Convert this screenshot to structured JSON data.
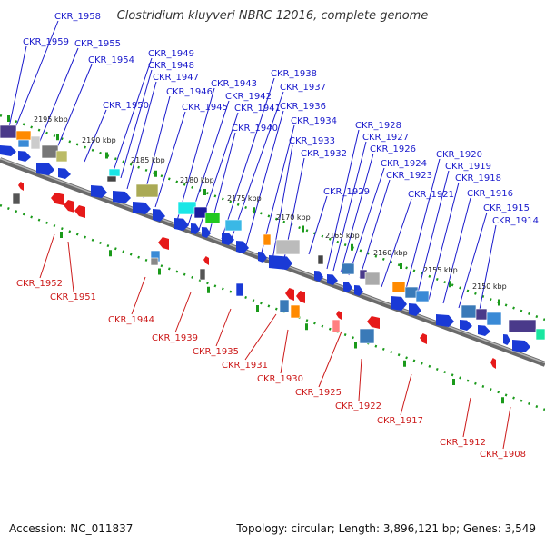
{
  "title": "Clostridium kluyveri NBRC 12016, complete genome",
  "footer": {
    "accession": "Accession: NC_011837",
    "topology": "Topology: circular; Length: 3,896,121 bp; Genes: 3,549"
  },
  "colors": {
    "forward_label": "#1a1acc",
    "reverse_label": "#cc1a1a",
    "backbone": "#7a7a7a",
    "tick_green": "#1a9a1a",
    "gene_forward": "#1a3ad6",
    "gene_reverse": "#e61a1a"
  },
  "scale_labels": [
    "2195 kbp",
    "2190 kbp",
    "2185 kbp",
    "2180 kbp",
    "2175 kbp",
    "2170 kbp",
    "2165 kbp",
    "2160 kbp",
    "2155 kbp",
    "2150 kbp"
  ],
  "forward_genes": [
    "CKR_1958",
    "CKR_1959",
    "CKR_1955",
    "CKR_1954",
    "CKR_1949",
    "CKR_1948",
    "CKR_1947",
    "CKR_1950",
    "CKR_1946",
    "CKR_1945",
    "CKR_1943",
    "CKR_1942",
    "CKR_1941",
    "CKR_1940",
    "CKR_1938",
    "CKR_1937",
    "CKR_1936",
    "CKR_1934",
    "CKR_1933",
    "CKR_1932",
    "CKR_1929",
    "CKR_1928",
    "CKR_1927",
    "CKR_1926",
    "CKR_1924",
    "CKR_1923",
    "CKR_1921",
    "CKR_1920",
    "CKR_1919",
    "CKR_1918",
    "CKR_1916",
    "CKR_1915",
    "CKR_1914"
  ],
  "reverse_genes": [
    "CKR_1952",
    "CKR_1951",
    "CKR_1944",
    "CKR_1939",
    "CKR_1935",
    "CKR_1931",
    "CKR_1930",
    "CKR_1925",
    "CKR_1922",
    "CKR_1917",
    "CKR_1912",
    "CKR_1908"
  ]
}
